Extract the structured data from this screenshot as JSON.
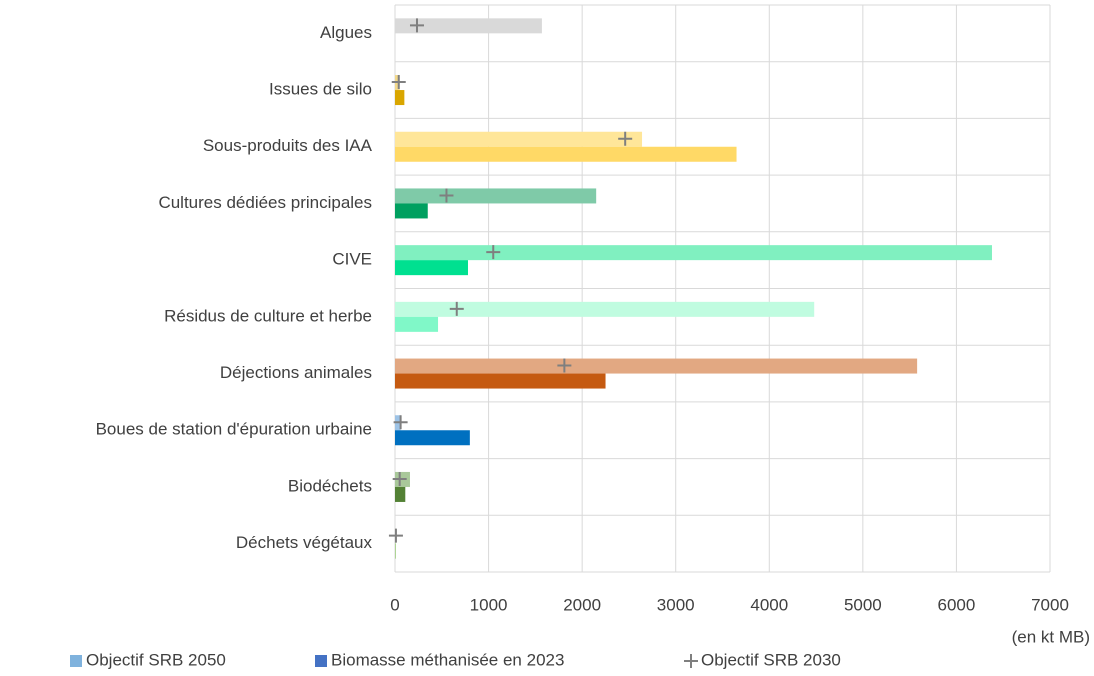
{
  "chart_data": {
    "type": "bar",
    "orientation": "horizontal",
    "categories": [
      "Algues",
      "Issues de silo",
      "Sous-produits des IAA",
      "Cultures dédiées principales",
      "CIVE",
      "Résidus de culture et herbe",
      "Déjections animales",
      "Boues de station d'épuration urbaine",
      "Biodéchets",
      "Déchets végétaux"
    ],
    "series": [
      {
        "name": "Objectif SRB 2050",
        "color": "#7fb2dd",
        "values": [
          1570,
          50,
          2640,
          2150,
          6380,
          4480,
          5580,
          60,
          160,
          10
        ],
        "colors": [
          "#d9d9d9",
          "#f2d88a",
          "#ffe699",
          "#7fcaa8",
          "#80f0c0",
          "#c0fce0",
          "#e2a882",
          "#9dc3e6",
          "#a9c89a",
          "#c5e0b4"
        ]
      },
      {
        "name": "Biomasse méthanisée en 2023",
        "color": "#4472c4",
        "values": [
          null,
          100,
          3650,
          350,
          780,
          460,
          2250,
          800,
          110,
          10
        ],
        "colors": [
          "#bfbfbf",
          "#d9a600",
          "#ffd966",
          "#00a060",
          "#00e090",
          "#80f8c8",
          "#c55a11",
          "#0070c0",
          "#538135",
          "#a9d18e"
        ]
      },
      {
        "name": "Objectif SRB 2030",
        "type": "scatter",
        "marker": "+",
        "color": "#7f7f7f",
        "values": [
          235,
          40,
          2460,
          550,
          1050,
          660,
          1810,
          60,
          50,
          10
        ]
      }
    ],
    "xlim": [
      0,
      7000
    ],
    "xticks": [
      0,
      1000,
      2000,
      3000,
      4000,
      5000,
      6000,
      7000
    ],
    "grid": true,
    "annotations": [
      "(en kt MB)"
    ],
    "legend": "bottom"
  }
}
